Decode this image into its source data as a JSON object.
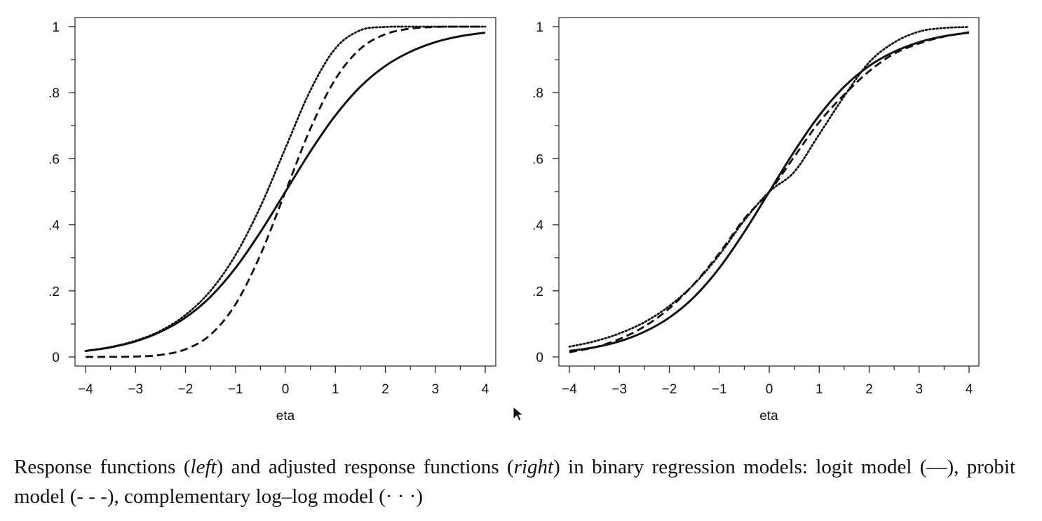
{
  "chart_data": [
    {
      "type": "line",
      "xlabel": "eta",
      "ylabel": "",
      "xlim": [
        -4,
        4
      ],
      "ylim": [
        0,
        1
      ],
      "x_ticks": [
        -4,
        -3,
        -2,
        -1,
        0,
        1,
        2,
        3,
        4
      ],
      "x_tick_labels": [
        "−4",
        "−3",
        "−2",
        "−1",
        "0",
        "1",
        "2",
        "3",
        "4"
      ],
      "y_ticks": [
        0,
        0.2,
        0.4,
        0.6,
        0.8,
        1
      ],
      "y_tick_labels": [
        "0",
        ".2",
        ".4",
        ".6",
        ".8",
        "1"
      ],
      "grid": false,
      "x": [
        -4,
        -3.5,
        -3,
        -2.5,
        -2,
        -1.5,
        -1,
        -0.5,
        0,
        0.5,
        1,
        1.5,
        2,
        2.5,
        3,
        3.5,
        4
      ],
      "series": [
        {
          "style": "solid",
          "values": [
            0.018,
            0.029,
            0.047,
            0.076,
            0.119,
            0.182,
            0.269,
            0.378,
            0.5,
            0.622,
            0.731,
            0.818,
            0.881,
            0.924,
            0.953,
            0.971,
            0.982
          ]
        },
        {
          "style": "dashed",
          "values": [
            0.0,
            0.0002,
            0.001,
            0.006,
            0.023,
            0.067,
            0.159,
            0.309,
            0.5,
            0.691,
            0.841,
            0.933,
            0.977,
            0.994,
            0.999,
            1.0,
            1.0
          ]
        },
        {
          "style": "dotted",
          "values": [
            0.018,
            0.03,
            0.049,
            0.079,
            0.127,
            0.2,
            0.308,
            0.455,
            0.632,
            0.807,
            0.934,
            0.989,
            0.999,
            1.0,
            1.0,
            1.0,
            1.0
          ]
        }
      ]
    },
    {
      "type": "line",
      "xlabel": "eta",
      "ylabel": "",
      "xlim": [
        -4,
        4
      ],
      "ylim": [
        0,
        1
      ],
      "x_ticks": [
        -4,
        -3,
        -2,
        -1,
        0,
        1,
        2,
        3,
        4
      ],
      "x_tick_labels": [
        "−4",
        "−3",
        "−2",
        "−1",
        "0",
        "1",
        "2",
        "3",
        "4"
      ],
      "y_ticks": [
        0,
        0.2,
        0.4,
        0.6,
        0.8,
        1
      ],
      "y_tick_labels": [
        "0",
        ".2",
        ".4",
        ".6",
        ".8",
        "1"
      ],
      "grid": false,
      "x": [
        -4,
        -3.5,
        -3,
        -2.5,
        -2,
        -1.5,
        -1,
        -0.5,
        0,
        0.5,
        1,
        1.5,
        2,
        2.5,
        3,
        3.5,
        4
      ],
      "series": [
        {
          "style": "solid",
          "values": [
            0.018,
            0.029,
            0.047,
            0.076,
            0.119,
            0.182,
            0.269,
            0.378,
            0.5,
            0.622,
            0.731,
            0.818,
            0.881,
            0.924,
            0.953,
            0.971,
            0.982
          ]
        },
        {
          "style": "dashed",
          "values": [
            0.014,
            0.029,
            0.054,
            0.092,
            0.147,
            0.222,
            0.314,
            0.418,
            0.5,
            0.606,
            0.711,
            0.794,
            0.865,
            0.918,
            0.949,
            0.97,
            0.983
          ]
        },
        {
          "style": "dotted",
          "values": [
            0.031,
            0.047,
            0.071,
            0.105,
            0.154,
            0.221,
            0.309,
            0.413,
            0.5,
            0.56,
            0.674,
            0.789,
            0.892,
            0.952,
            0.985,
            0.996,
            0.999
          ]
        }
      ]
    }
  ],
  "caption": {
    "part1": "Response functions (",
    "left_word": "left",
    "part2": ") and adjusted response functions (",
    "right_word": "right",
    "part3": ") in binary regression models: logit model (—), probit model (- - -), complementary log–log model (· · ·)"
  },
  "colors": {
    "line": "#111111",
    "axis": "#222222"
  }
}
